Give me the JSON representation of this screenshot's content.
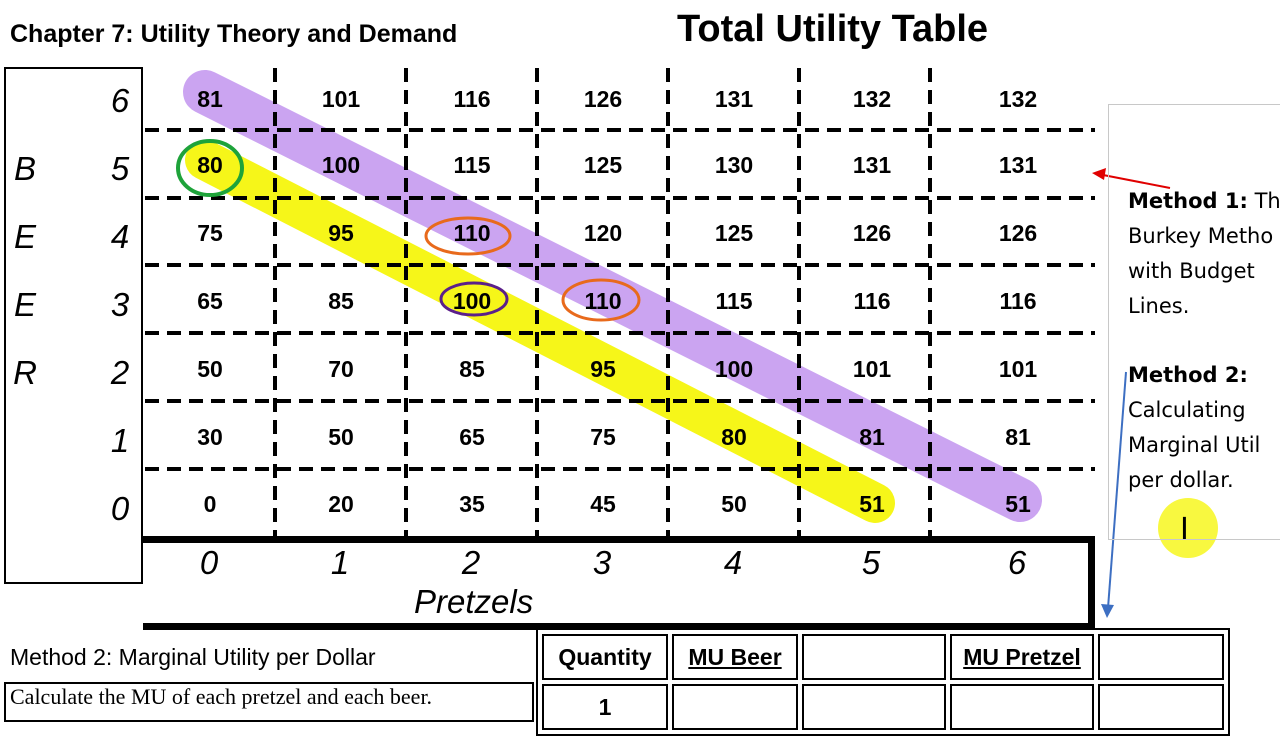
{
  "header": {
    "chapter": "Chapter 7: Utility Theory and Demand",
    "title": "Total Utility Table"
  },
  "beer_axis": {
    "letters": [
      "B",
      "E",
      "E",
      "R"
    ],
    "quantities": [
      "6",
      "5",
      "4",
      "3",
      "2",
      "1",
      "0"
    ]
  },
  "pretzel_axis": {
    "quantities": [
      "0",
      "1",
      "2",
      "3",
      "4",
      "5",
      "6"
    ],
    "label": "Pretzels"
  },
  "utility_rows": [
    [
      "81",
      "101",
      "116",
      "126",
      "131",
      "132",
      "132"
    ],
    [
      "80",
      "100",
      "115",
      "125",
      "130",
      "131",
      "131"
    ],
    [
      "75",
      "95",
      "110",
      "120",
      "125",
      "126",
      "126"
    ],
    [
      "65",
      "85",
      "100",
      "110",
      "115",
      "116",
      "116"
    ],
    [
      "50",
      "70",
      "85",
      "95",
      "100",
      "101",
      "101"
    ],
    [
      "30",
      "50",
      "65",
      "75",
      "80",
      "81",
      "81"
    ],
    [
      "0",
      "20",
      "35",
      "45",
      "50",
      "51",
      "51"
    ]
  ],
  "side_panel": {
    "m1_label": "Method 1:",
    "m1_lines": [
      "Th",
      "Burkey Metho",
      "with Budget",
      "Lines."
    ],
    "m2_label": "Method 2:",
    "m2_lines": [
      "Calculating",
      "Marginal Util",
      "per dollar."
    ]
  },
  "method2": {
    "title": "Method 2: Marginal Utility per Dollar",
    "instruction": "Calculate the MU of each pretzel and each beer."
  },
  "mu_table": {
    "headers": [
      "Quantity",
      "MU Beer",
      "",
      "MU Pretzel",
      ""
    ],
    "rows": [
      [
        "1",
        "",
        "",
        "",
        ""
      ]
    ]
  },
  "colors": {
    "purple_highlight": "#c59af0",
    "yellow_highlight": "#f5f500",
    "green_circle": "#1ea33a",
    "orange_circle": "#e86a1c",
    "purple_circle": "#5b1f8a",
    "red_arrow": "#e00000",
    "blue_arrow": "#3d6fc2"
  },
  "icons": {
    "cursor": "text-cursor-icon"
  }
}
